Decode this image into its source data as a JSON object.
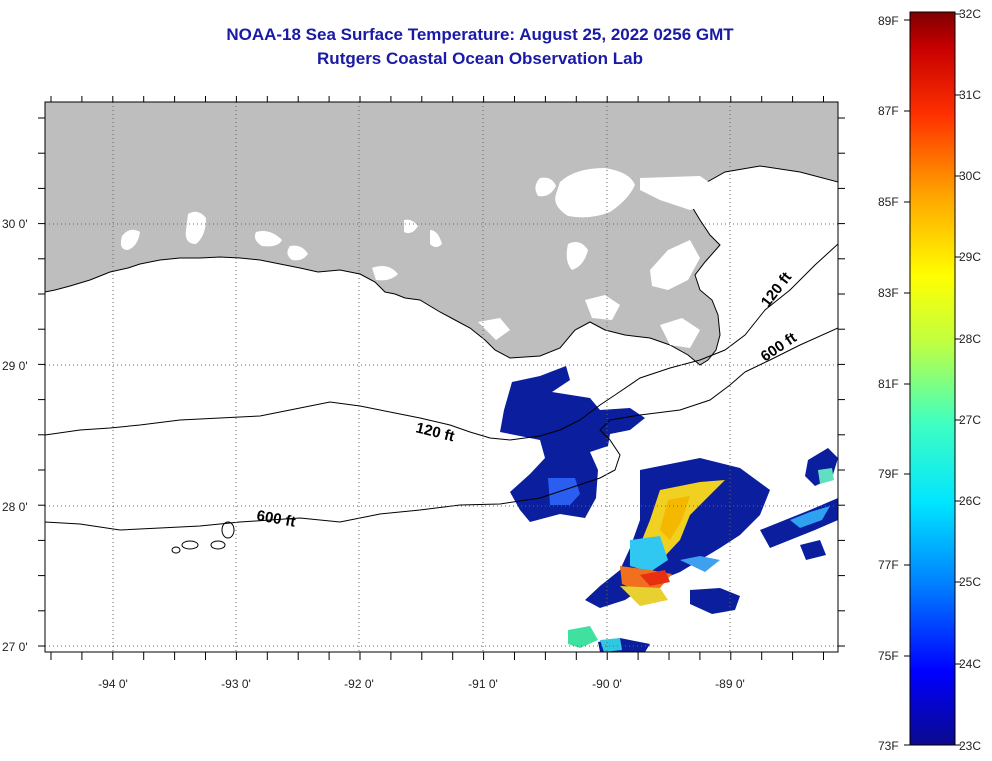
{
  "title_line1": "NOAA-18 Sea Surface Temperature:  August 25, 2022 0256 GMT",
  "title_line2": "Rutgers Coastal Ocean Observation Lab",
  "colors": {
    "land": "#bebebe",
    "ocean": "#ffffff",
    "cold_water": "#0a1e9e",
    "title": "#1a1aa6"
  },
  "lat_labels": [
    "30 0'",
    "29 0'",
    "28 0'",
    "27 0'"
  ],
  "lon_labels": [
    "-94 0'",
    "-93 0'",
    "-92 0'",
    "-91 0'",
    "-90 0'",
    "-89 0'"
  ],
  "contours": [
    {
      "label": "120 ft",
      "depth_ft": 120
    },
    {
      "label": "600 ft",
      "depth_ft": 600
    },
    {
      "label": "120 ft",
      "depth_ft": 120
    },
    {
      "label": "600 ft",
      "depth_ft": 600
    }
  ],
  "colorbar": {
    "fahrenheit_labels": [
      "89F",
      "87F",
      "85F",
      "83F",
      "81F",
      "79F",
      "77F",
      "75F",
      "73F"
    ],
    "celsius_labels": [
      "32C",
      "31C",
      "30C",
      "29C",
      "28C",
      "27C",
      "26C",
      "25C",
      "24C",
      "23C"
    ],
    "stops": [
      "#0a0a8c",
      "#0000ff",
      "#0080ff",
      "#00e5ff",
      "#40ffc0",
      "#c0ff40",
      "#ffff00",
      "#ffa500",
      "#ff3000",
      "#c80000",
      "#800000"
    ]
  }
}
